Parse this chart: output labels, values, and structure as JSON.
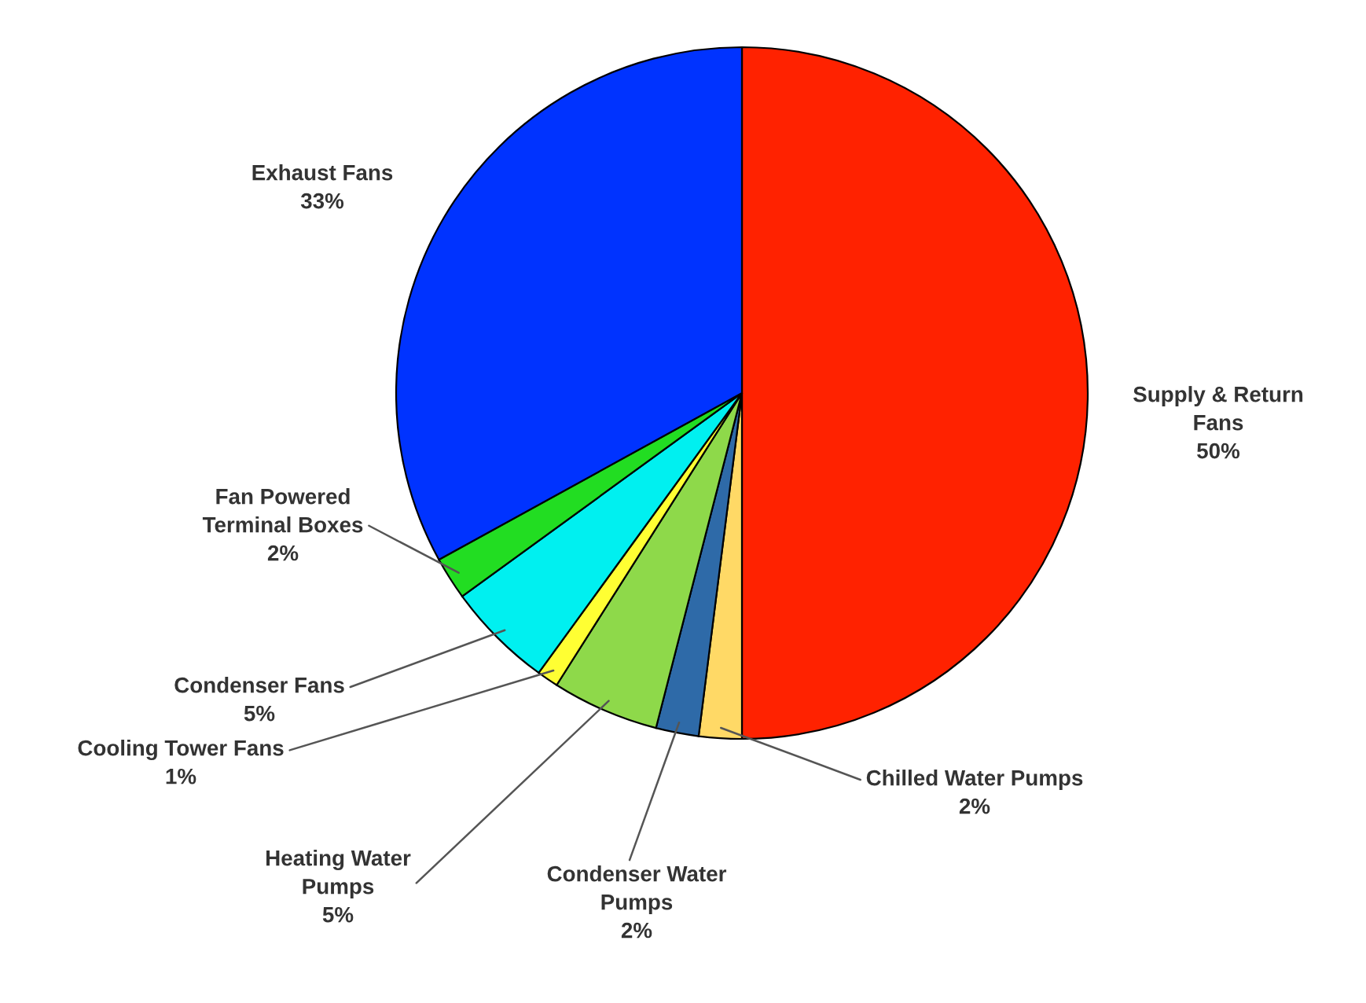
{
  "chart_data": {
    "type": "pie",
    "categories": [
      "Supply & Return\nFans",
      "Chilled Water Pumps",
      "Condenser Water\nPumps",
      "Heating Water\nPumps",
      "Cooling Tower Fans",
      "Condenser Fans",
      "Fan Powered\nTerminal Boxes",
      "Exhaust Fans"
    ],
    "values": [
      50,
      2,
      2,
      5,
      1,
      5,
      2,
      33
    ],
    "value_labels": [
      "50%",
      "2%",
      "2%",
      "5%",
      "1%",
      "5%",
      "2%",
      "33%"
    ],
    "colors": [
      "#ff2200",
      "#ffd966",
      "#2e6aa8",
      "#8ed94a",
      "#ffff33",
      "#00f0f0",
      "#22dd22",
      "#0033ff"
    ]
  }
}
